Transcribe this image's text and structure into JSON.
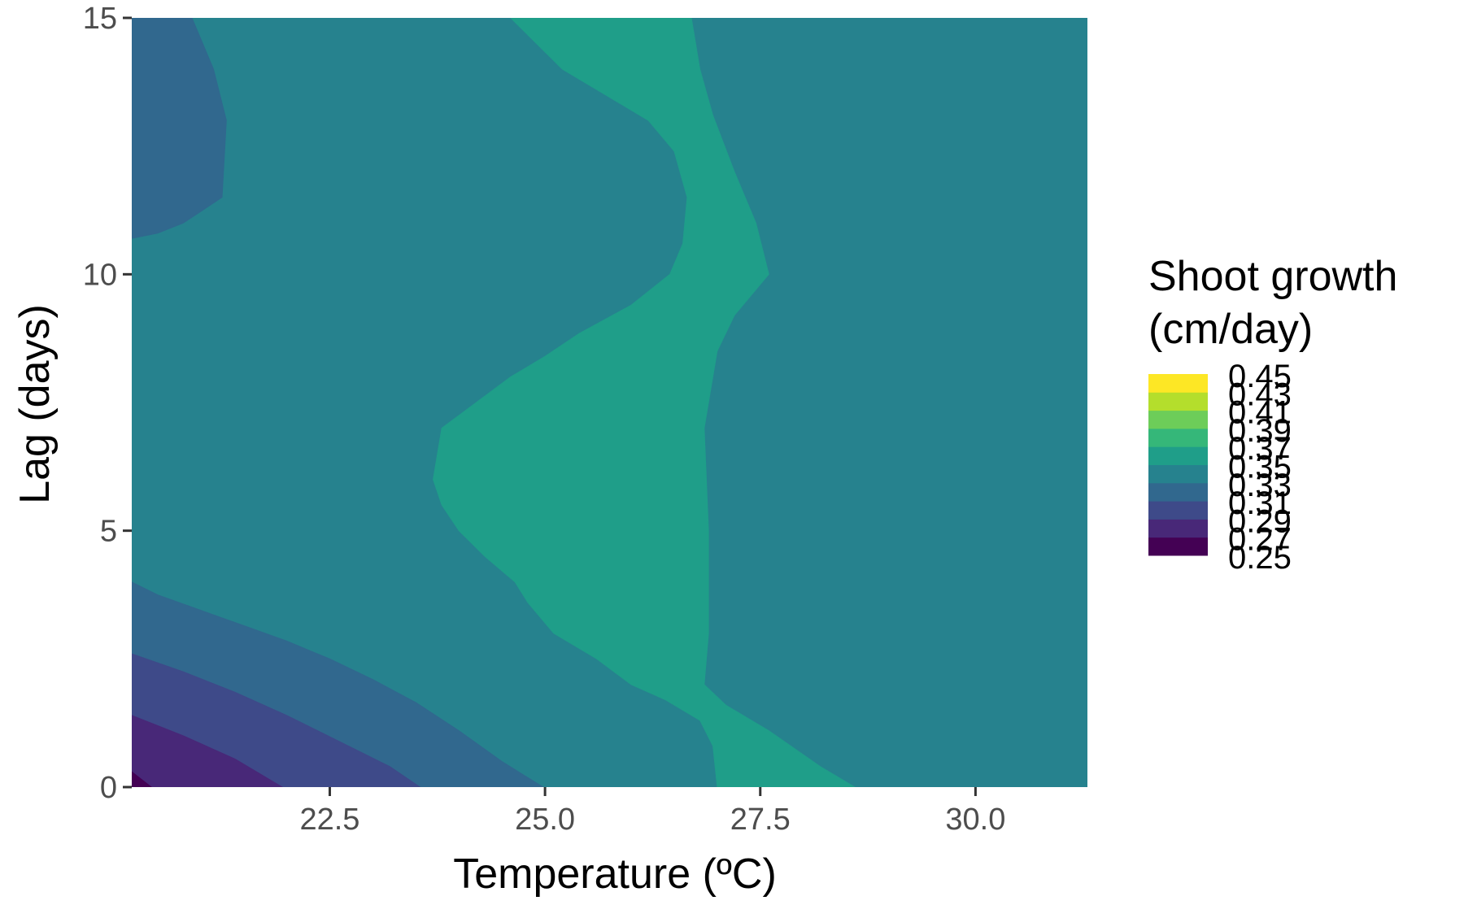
{
  "chart_data": {
    "type": "filled-contour",
    "xlabel": "Temperature (ºC)",
    "ylabel": "Lag (days)",
    "legend_title_lines": [
      "Shoot growth",
      "(cm/day)"
    ],
    "xlim": [
      20.2,
      31.3
    ],
    "ylim": [
      0,
      15
    ],
    "x_ticks": [
      22.5,
      25.0,
      27.5,
      30.0
    ],
    "x_tick_labels": [
      "22.5",
      "25.0",
      "27.5",
      "30.0"
    ],
    "y_ticks": [
      0,
      5,
      10,
      15
    ],
    "y_tick_labels": [
      "0",
      "5",
      "10",
      "15"
    ],
    "grid": false,
    "legend_position": "right",
    "levels": [
      "0.25",
      "0.27",
      "0.29",
      "0.31",
      "0.33",
      "0.35",
      "0.37",
      "0.39",
      "0.41",
      "0.43",
      "0.45"
    ],
    "bin_colors": [
      "#440154",
      "#482878",
      "#3E4A89",
      "#31688E",
      "#26828E",
      "#1F9E89",
      "#35B779",
      "#6DCD59",
      "#B4DE2C",
      "#FDE725"
    ],
    "regions": [
      {
        "bin": "0.33-0.35",
        "fill": "#26828E",
        "points": [
          [
            20.2,
            0
          ],
          [
            31.3,
            0
          ],
          [
            31.3,
            15
          ],
          [
            20.2,
            15
          ]
        ]
      },
      {
        "bin": "0.31-0.33",
        "fill": "#31688E",
        "points": [
          [
            20.2,
            4.0
          ],
          [
            20.5,
            3.75
          ],
          [
            21.0,
            3.45
          ],
          [
            21.5,
            3.15
          ],
          [
            22.0,
            2.85
          ],
          [
            22.5,
            2.5
          ],
          [
            23.0,
            2.1
          ],
          [
            23.5,
            1.65
          ],
          [
            24.0,
            1.1
          ],
          [
            24.5,
            0.5
          ],
          [
            24.98,
            0
          ],
          [
            20.2,
            0
          ]
        ]
      },
      {
        "bin": "0.29-0.31",
        "fill": "#3E4A89",
        "points": [
          [
            20.2,
            2.6
          ],
          [
            20.8,
            2.25
          ],
          [
            21.4,
            1.85
          ],
          [
            22.0,
            1.4
          ],
          [
            22.6,
            0.9
          ],
          [
            23.2,
            0.4
          ],
          [
            23.55,
            0
          ],
          [
            20.2,
            0
          ]
        ]
      },
      {
        "bin": "0.27-0.29",
        "fill": "#482878",
        "points": [
          [
            20.2,
            1.4
          ],
          [
            20.8,
            1.0
          ],
          [
            21.4,
            0.55
          ],
          [
            21.95,
            0
          ],
          [
            20.2,
            0
          ]
        ]
      },
      {
        "bin": "0.25-0.27",
        "fill": "#440154",
        "points": [
          [
            20.2,
            0.3
          ],
          [
            20.43,
            0
          ],
          [
            20.2,
            0
          ]
        ]
      },
      {
        "bin": "0.31-0.33",
        "fill": "#31688E",
        "points": [
          [
            20.2,
            15
          ],
          [
            20.9,
            15
          ],
          [
            21.15,
            14.0
          ],
          [
            21.3,
            13.0
          ],
          [
            21.25,
            11.5
          ],
          [
            20.8,
            11.0
          ],
          [
            20.5,
            10.8
          ],
          [
            20.2,
            10.7
          ]
        ]
      },
      {
        "bin": "0.35-0.37",
        "fill": "#1F9E89",
        "points": [
          [
            24.6,
            15
          ],
          [
            26.7,
            15
          ],
          [
            26.8,
            14.0
          ],
          [
            26.95,
            13.1
          ],
          [
            27.2,
            12.0
          ],
          [
            27.45,
            11.0
          ],
          [
            27.6,
            10.0
          ],
          [
            27.2,
            9.2
          ],
          [
            27.0,
            8.5
          ],
          [
            26.85,
            7.0
          ],
          [
            26.9,
            5.0
          ],
          [
            26.9,
            3.0
          ],
          [
            26.85,
            2.0
          ],
          [
            27.1,
            1.6
          ],
          [
            27.6,
            1.1
          ],
          [
            28.2,
            0.4
          ],
          [
            28.6,
            0
          ],
          [
            27.0,
            0
          ],
          [
            26.95,
            0.8
          ],
          [
            26.8,
            1.3
          ],
          [
            26.4,
            1.7
          ],
          [
            26.0,
            2.0
          ],
          [
            25.6,
            2.5
          ],
          [
            25.1,
            3.0
          ],
          [
            24.8,
            3.6
          ],
          [
            24.65,
            4.0
          ],
          [
            24.3,
            4.5
          ],
          [
            24.0,
            5.0
          ],
          [
            23.8,
            5.5
          ],
          [
            23.7,
            6.0
          ],
          [
            23.8,
            7.0
          ],
          [
            24.6,
            8.0
          ],
          [
            25.0,
            8.4
          ],
          [
            25.4,
            8.85
          ],
          [
            26.0,
            9.4
          ],
          [
            26.45,
            10.0
          ],
          [
            26.6,
            10.6
          ],
          [
            26.65,
            11.5
          ],
          [
            26.5,
            12.4
          ],
          [
            26.2,
            13.0
          ],
          [
            25.2,
            14.0
          ]
        ]
      }
    ]
  }
}
